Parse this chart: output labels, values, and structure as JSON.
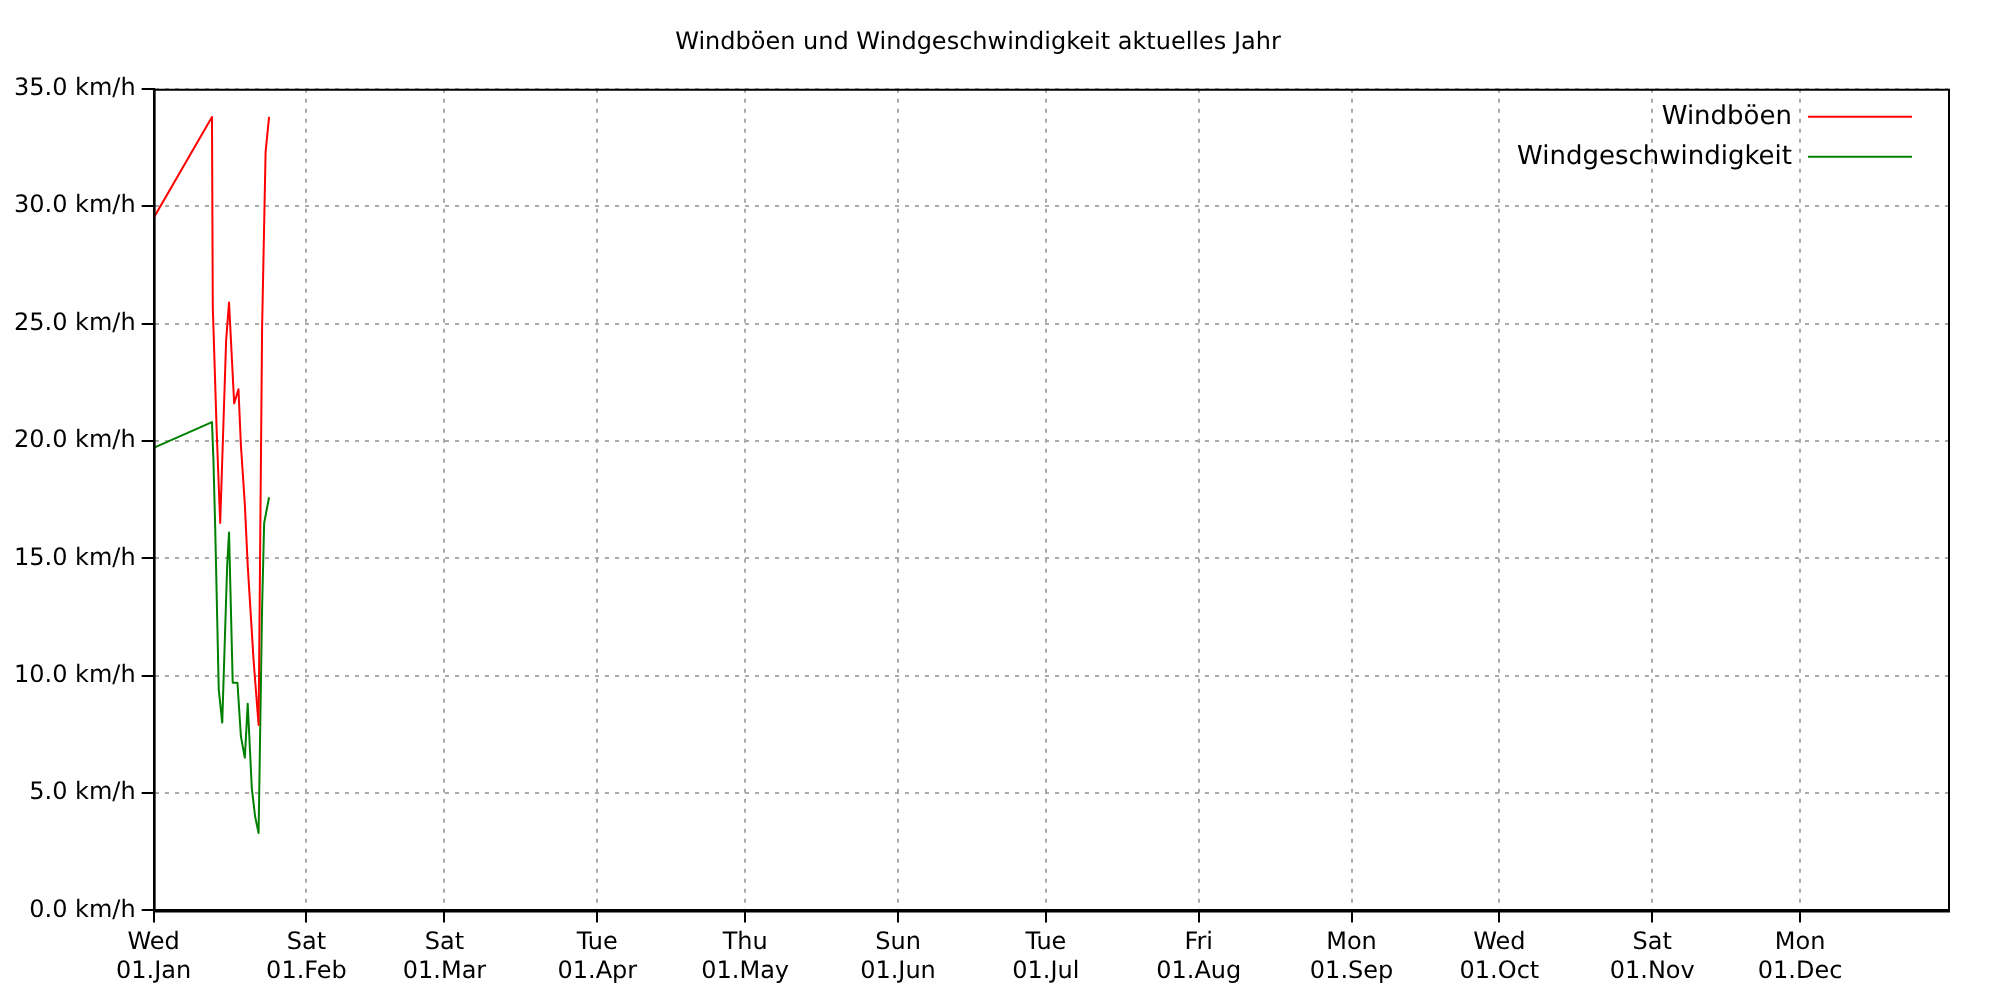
{
  "chart_data": {
    "type": "line",
    "title": "Windböen und Windgeschwindigkeit aktuelles Jahr",
    "series": [
      {
        "name": "Windböen",
        "color": "#ff0000",
        "x": [
          "--01-01T00:00",
          "--01-12T20:00",
          "--01-13T00:00",
          "--01-13T19:00",
          "--01-14T12:00",
          "--01-15T17:00",
          "--01-16T07:00",
          "--01-17T08:00",
          "--01-18T05:00",
          "--01-18T17:00",
          "--01-19T12:00",
          "--01-20T02:00",
          "--01-21T07:00",
          "--01-22T07:00",
          "--01-23T00:00",
          "--01-23T17:00",
          "--01-24T10:00"
        ],
        "values": [
          29.5,
          33.8,
          25.7,
          20.4,
          16.5,
          24.3,
          25.9,
          21.6,
          22.2,
          19.8,
          17.3,
          14.7,
          10.6,
          7.9,
          24.8,
          32.3,
          33.8
        ]
      },
      {
        "name": "Windgeschwindigkeit",
        "color": "#008000",
        "x": [
          "--01-01T00:00",
          "--01-12T20:00",
          "--01-13T03:00",
          "--01-13T12:00",
          "--01-14T05:00",
          "--01-14T22:00",
          "--01-15T22:00",
          "--01-16T07:00",
          "--01-17T01:00",
          "--01-18T00:00",
          "--01-18T17:00",
          "--01-19T12:00",
          "--01-20T02:00",
          "--01-20T22:00",
          "--01-21T14:00",
          "--01-22T07:00",
          "--01-23T00:00",
          "--01-23T10:00",
          "--01-24T10:00"
        ],
        "values": [
          19.7,
          20.8,
          19.2,
          16.2,
          9.4,
          8.0,
          14.7,
          16.1,
          9.7,
          9.7,
          7.4,
          6.5,
          8.8,
          5.2,
          4.0,
          3.3,
          12.9,
          16.5,
          17.6
        ]
      }
    ],
    "xlim": [
      "--01-01",
      "--12-31"
    ],
    "xticks": [
      {
        "value": "--01-01",
        "label": "Wed 01.Jan"
      },
      {
        "value": "--02-01",
        "label": "Sat 01.Feb"
      },
      {
        "value": "--03-01",
        "label": "Sat 01.Mar"
      },
      {
        "value": "--04-01",
        "label": "Tue 01.Apr"
      },
      {
        "value": "--05-01",
        "label": "Thu 01.May"
      },
      {
        "value": "--06-01",
        "label": "Sun 01.Jun"
      },
      {
        "value": "--07-01",
        "label": "Tue 01.Jul"
      },
      {
        "value": "--08-01",
        "label": "Fri 01.Aug"
      },
      {
        "value": "--09-01",
        "label": "Mon 01.Sep"
      },
      {
        "value": "--10-01",
        "label": "Wed 01.Oct"
      },
      {
        "value": "--11-01",
        "label": "Sat 01.Nov"
      },
      {
        "value": "--12-01",
        "label": "Mon 01.Dec"
      }
    ],
    "ylim": [
      0,
      35
    ],
    "yticks": [
      {
        "value": 0,
        "label": "0.0 km/h"
      },
      {
        "value": 5,
        "label": "5.0 km/h"
      },
      {
        "value": 10,
        "label": "10.0 km/h"
      },
      {
        "value": 15,
        "label": "15.0 km/h"
      },
      {
        "value": 20,
        "label": "20.0 km/h"
      },
      {
        "value": 25,
        "label": "25.0 km/h"
      },
      {
        "value": 30,
        "label": "30.0 km/h"
      },
      {
        "value": 35,
        "label": "35.0 km/h"
      }
    ],
    "grid": true,
    "legend": "top right",
    "marker": "none",
    "line_style": "solid"
  }
}
